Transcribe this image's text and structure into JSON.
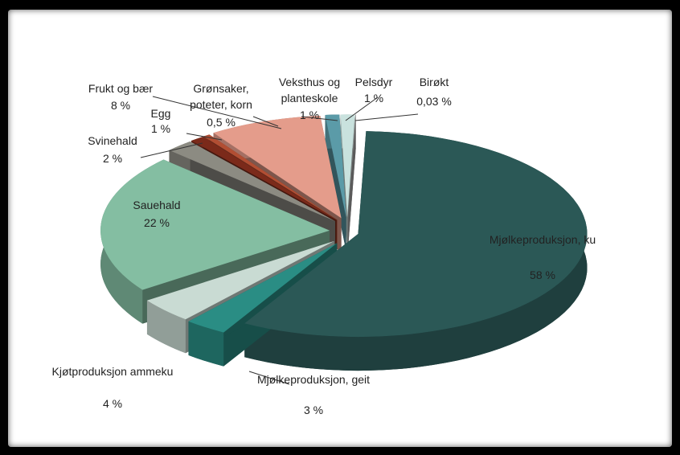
{
  "chart_data": {
    "type": "pie3d",
    "categories": [
      "Mjølkeproduksjon, ku",
      "Mjølkeproduksjon, geit",
      "Kjøtproduksjon ammeku",
      "Sauehald",
      "Svinehald",
      "Egg",
      "Grønsaker, poteter, korn",
      "Frukt og bær",
      "Veksthus og planteskole",
      "Pelsdyr",
      "Birøkt"
    ],
    "values": [
      58,
      3,
      4,
      22,
      2,
      1,
      0.5,
      8,
      1,
      1,
      0.03
    ],
    "value_labels": [
      "58 %",
      "3 %",
      "4 %",
      "22 %",
      "2 %",
      "1 %",
      "0,5 %",
      "8 %",
      "1 %",
      "1 %",
      "0,03 %"
    ],
    "colors": [
      "#2b5856",
      "#2a8d84",
      "#c9dbd3",
      "#84bea2",
      "#8c8b82",
      "#7b2a1a",
      "#b24e33",
      "#e49c8b",
      "#5b9ba8",
      "#c9e2de",
      "#a3a3a3"
    ]
  }
}
